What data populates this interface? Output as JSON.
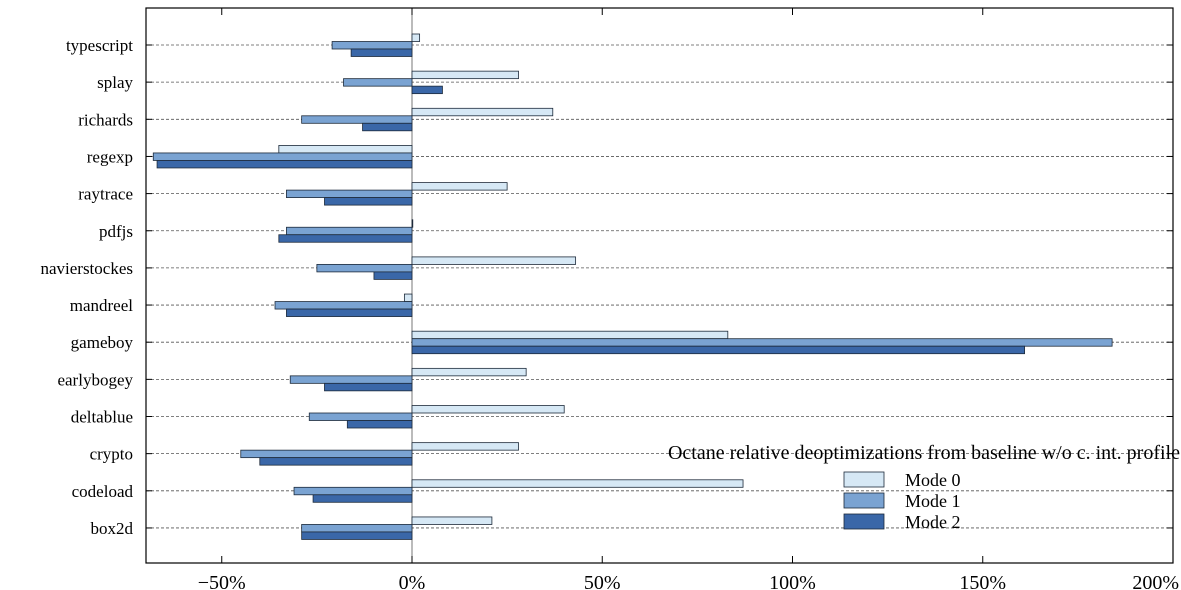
{
  "chart_data": {
    "type": "bar",
    "orientation": "horizontal",
    "categories": [
      "typescript",
      "splay",
      "richards",
      "regexp",
      "raytrace",
      "pdfjs",
      "navierstockes",
      "mandreel",
      "gameboy",
      "earlybogey",
      "deltablue",
      "crypto",
      "codeload",
      "box2d"
    ],
    "series": [
      {
        "name": "Mode 0",
        "color": "#d6e8f5",
        "values": [
          2,
          28,
          37,
          -35,
          25,
          0,
          43,
          -2,
          83,
          30,
          40,
          28,
          87,
          21
        ]
      },
      {
        "name": "Mode 1",
        "color": "#7aa3d2",
        "values": [
          -21,
          -18,
          -29,
          -68,
          -33,
          -33,
          -25,
          -36,
          184,
          -32,
          -27,
          -45,
          -31,
          -29
        ]
      },
      {
        "name": "Mode 2",
        "color": "#3a67a8",
        "values": [
          -16,
          8,
          -13,
          -67,
          -23,
          -35,
          -10,
          -33,
          161,
          -23,
          -17,
          -40,
          -26,
          -29
        ]
      }
    ],
    "xlim": [
      -70,
      200
    ],
    "xticks": [
      -50,
      0,
      50,
      100,
      150,
      200
    ],
    "xtick_labels": [
      "−50%",
      "0%",
      "50%",
      "100%",
      "150%",
      "200%"
    ],
    "grid": "horizontal dashed",
    "legend": {
      "title": "Octane relative deoptimizations from baseline w/o c. int. profile",
      "placement": "lower-right"
    }
  }
}
